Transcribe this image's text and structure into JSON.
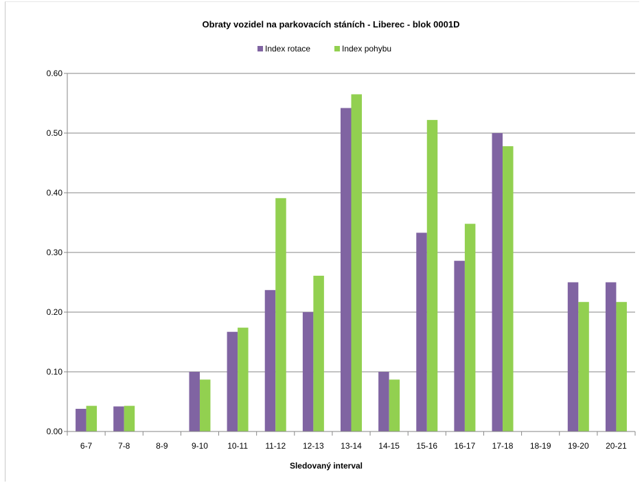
{
  "chart_data": {
    "type": "bar",
    "title": "Obraty vozidel na parkovacích stáních - Liberec - blok 0001D",
    "xlabel": "Sledovaný interval",
    "ylabel": "",
    "ylim": [
      0,
      0.6
    ],
    "yticks": [
      "0.00",
      "0.10",
      "0.20",
      "0.30",
      "0.40",
      "0.50",
      "0.60"
    ],
    "grid": true,
    "legend_position": "top",
    "categories": [
      "6-7",
      "7-8",
      "8-9",
      "9-10",
      "10-11",
      "11-12",
      "12-13",
      "13-14",
      "14-15",
      "15-16",
      "16-17",
      "17-18",
      "18-19",
      "19-20",
      "20-21"
    ],
    "series": [
      {
        "name": "Index rotace",
        "color": "#8064a2",
        "values": [
          0.038,
          0.042,
          0,
          0.1,
          0.167,
          0.237,
          0.2,
          0.542,
          0.1,
          0.333,
          0.286,
          0.5,
          0,
          0.25,
          0.25
        ]
      },
      {
        "name": "Index pohybu",
        "color": "#92d050",
        "values": [
          0.043,
          0.043,
          0,
          0.087,
          0.174,
          0.391,
          0.261,
          0.565,
          0.087,
          0.522,
          0.348,
          0.478,
          0,
          0.217,
          0.217
        ]
      }
    ]
  }
}
